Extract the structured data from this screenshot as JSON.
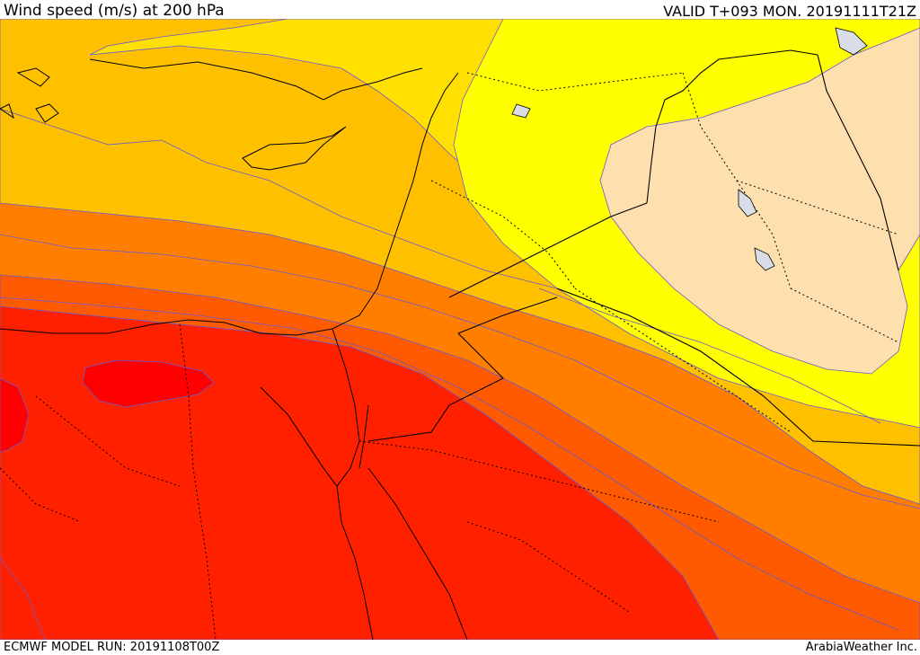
{
  "header": {
    "title": "Wind speed (m/s) at 200 hPa",
    "valid": "VALID T+093 MON. 20191111T21Z"
  },
  "footer": {
    "model_run": "ECMWF MODEL RUN: 20191108T00Z",
    "credit": "ArabiaWeather Inc."
  },
  "map": {
    "field": "wind speed at 200 hPa",
    "region": "Eastern Mediterranean, Egypt, Levant, Iraq",
    "bands": [
      {
        "level": 1,
        "color": "#fde0ad"
      },
      {
        "level": 2,
        "color": "#ffff00"
      },
      {
        "level": 3,
        "color": "#ffe000"
      },
      {
        "level": 4,
        "color": "#ffc000"
      },
      {
        "level": 5,
        "color": "#ffa500"
      },
      {
        "level": 6,
        "color": "#ff7e00"
      },
      {
        "level": 7,
        "color": "#ff5a00"
      },
      {
        "level": 8,
        "color": "#ff2000"
      },
      {
        "level": 9,
        "color": "#ff0000"
      }
    ],
    "contour_color": "#6a5acd",
    "coastline_color": "#000000",
    "lake_color": "#d8dde6"
  }
}
